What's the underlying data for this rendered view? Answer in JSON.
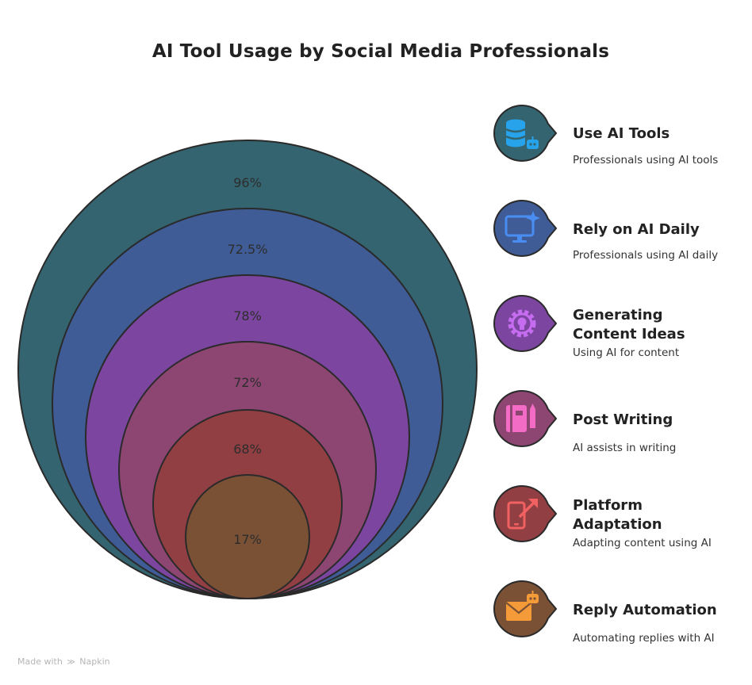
{
  "title": "AI Tool Usage by Social Media Professionals",
  "colors": {
    "ring_1": "#33646f",
    "ring_2": "#3f5c96",
    "ring_3": "#7c46a0",
    "ring_4": "#8d4672",
    "ring_5": "#923f43",
    "ring_6": "#7a5135",
    "outline": "#2a2a2a"
  },
  "rings": [
    {
      "label": "96%",
      "value": 96
    },
    {
      "label": "72.5%",
      "value": 72.5
    },
    {
      "label": "78%",
      "value": 78
    },
    {
      "label": "72%",
      "value": 72
    },
    {
      "label": "68%",
      "value": 68
    },
    {
      "label": "17%",
      "value": 17
    }
  ],
  "items": [
    {
      "title": "Use AI Tools",
      "desc": "Professionals using AI tools",
      "icon": "database-robot-icon"
    },
    {
      "title": "Rely on AI Daily",
      "desc": "Professionals using AI daily",
      "icon": "monitor-sparkle-icon"
    },
    {
      "title": "Generating Content Ideas",
      "desc": "Using AI for content",
      "icon": "gear-lightbulb-icon"
    },
    {
      "title": "Post Writing",
      "desc": "AI assists in writing",
      "icon": "notebook-pen-icon"
    },
    {
      "title": "Platform Adaptation",
      "desc": "Adapting content using AI",
      "icon": "phone-arrow-icon"
    },
    {
      "title": "Reply Automation",
      "desc": "Automating replies with AI",
      "icon": "envelope-robot-icon"
    }
  ],
  "footer": {
    "made_with": "Made with",
    "brand": "Napkin"
  }
}
